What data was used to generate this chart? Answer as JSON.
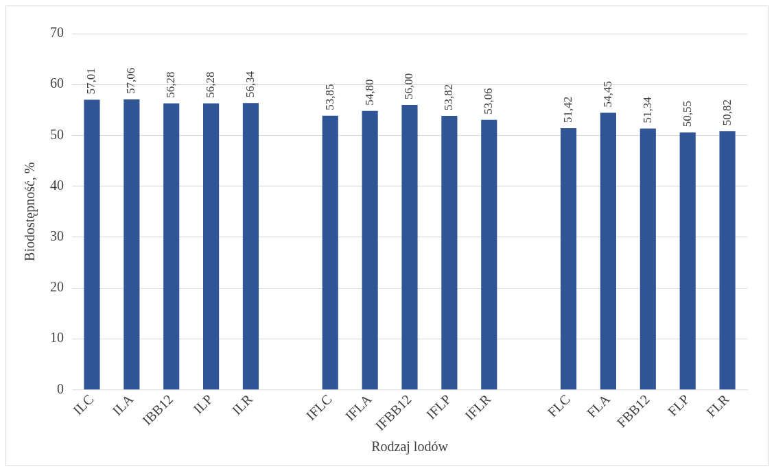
{
  "chart_data": {
    "type": "bar",
    "xlabel": "Rodzaj lodów",
    "ylabel": "Biodostępność, %",
    "categories": [
      "ILC",
      "ILA",
      "IBB12",
      "ILP",
      "ILR",
      null,
      "IFLC",
      "IFLA",
      "IFBB12",
      "IFLP",
      "IFLR",
      null,
      "FLC",
      "FLA",
      "FBB12",
      "FLP",
      "FLR"
    ],
    "values": [
      57.01,
      57.06,
      56.28,
      56.28,
      56.34,
      null,
      53.85,
      54.8,
      56.0,
      53.82,
      53.06,
      null,
      51.42,
      54.45,
      51.34,
      50.55,
      50.82
    ],
    "value_labels": [
      "57,01",
      "57,06",
      "56,28",
      "56,28",
      "56,34",
      null,
      "53,85",
      "54,80",
      "56,00",
      "53,82",
      "53,06",
      null,
      "51,42",
      "54,45",
      "51,34",
      "50,55",
      "50,82"
    ],
    "color": "#2f5597",
    "ylim": [
      0,
      70
    ],
    "yticks": [
      0,
      10,
      20,
      30,
      40,
      50,
      60,
      70
    ],
    "grid": "y",
    "legend": false
  }
}
